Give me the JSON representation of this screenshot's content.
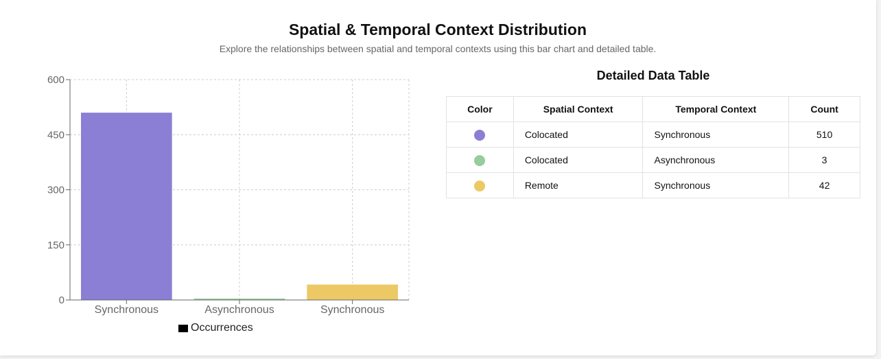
{
  "header": {
    "title": "Spatial & Temporal Context Distribution",
    "subtitle": "Explore the relationships between spatial and temporal contexts using this bar chart and detailed table."
  },
  "chart_data": {
    "type": "bar",
    "categories": [
      "Synchronous",
      "Asynchronous",
      "Synchronous"
    ],
    "series": [
      {
        "name": "Occurrences",
        "values": [
          510,
          3,
          42
        ]
      }
    ],
    "bar_colors": [
      "#8a7fd4",
      "#97cc9c",
      "#ecc964"
    ],
    "ylim": [
      0,
      600
    ],
    "yticks": [
      0,
      150,
      300,
      450,
      600
    ],
    "grid": true,
    "legend_position": "bottom"
  },
  "legend": {
    "label": "Occurrences"
  },
  "table": {
    "title": "Detailed Data Table",
    "headers": [
      "Color",
      "Spatial Context",
      "Temporal Context",
      "Count"
    ],
    "rows": [
      {
        "color": "#8a7fd4",
        "spatial": "Colocated",
        "temporal": "Synchronous",
        "count": "510"
      },
      {
        "color": "#97cc9c",
        "spatial": "Colocated",
        "temporal": "Asynchronous",
        "count": "3"
      },
      {
        "color": "#ecc964",
        "spatial": "Remote",
        "temporal": "Synchronous",
        "count": "42"
      }
    ]
  }
}
